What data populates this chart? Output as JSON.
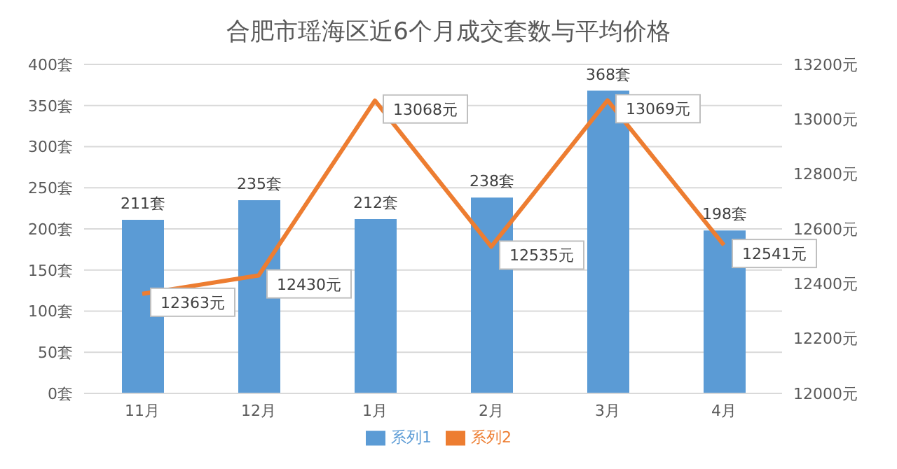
{
  "chart_data": {
    "type": "bar",
    "title": "合肥市瑶海区近6个月成交套数与平均价格",
    "categories": [
      "11月",
      "12月",
      "1月",
      "2月",
      "3月",
      "4月"
    ],
    "series": [
      {
        "name": "系列1",
        "color": "#5b9bd5",
        "values": [
          211,
          235,
          212,
          238,
          368,
          198
        ],
        "value_labels": [
          "211套",
          "235套",
          "212套",
          "238套",
          "368套",
          "198套"
        ]
      },
      {
        "name": "系列2",
        "type": "line",
        "axis": "y2",
        "color": "#ed7d31",
        "marker": "none",
        "values": [
          12363,
          12430,
          13068,
          12535,
          13069,
          12541
        ],
        "value_labels": [
          "12363元",
          "12430元",
          "13068元",
          "12535元",
          "13069元",
          "12541元"
        ]
      }
    ],
    "ylim": [
      0,
      400
    ],
    "yticks": [
      {
        "value": 0,
        "label": "0套"
      },
      {
        "value": 50,
        "label": "50套"
      },
      {
        "value": 100,
        "label": "100套"
      },
      {
        "value": 150,
        "label": "150套"
      },
      {
        "value": 200,
        "label": "200套"
      },
      {
        "value": 250,
        "label": "250套"
      },
      {
        "value": 300,
        "label": "300套"
      },
      {
        "value": 350,
        "label": "350套"
      },
      {
        "value": 400,
        "label": "400套"
      }
    ],
    "y2lim": [
      12000,
      13200
    ],
    "y2ticks": [
      {
        "value": 12000,
        "label": "12000元"
      },
      {
        "value": 12200,
        "label": "12200元"
      },
      {
        "value": 12400,
        "label": "12400元"
      },
      {
        "value": 12600,
        "label": "12600元"
      },
      {
        "value": 12800,
        "label": "12800元"
      },
      {
        "value": 13000,
        "label": "13000元"
      },
      {
        "value": 13200,
        "label": "13200元"
      }
    ],
    "grid": "y",
    "legend": "bottom"
  }
}
